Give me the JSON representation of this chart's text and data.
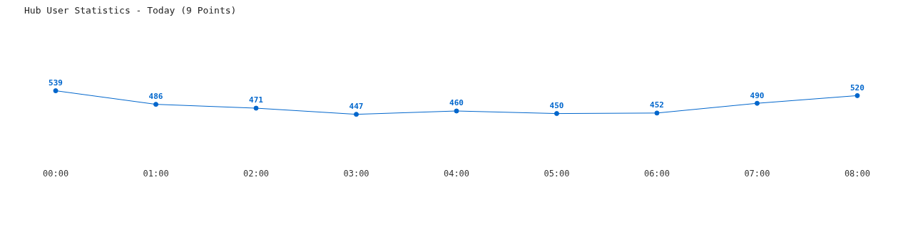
{
  "chart_data": {
    "type": "line",
    "title": "Hub User Statistics - Today (9 Points)",
    "categories": [
      "00:00",
      "01:00",
      "02:00",
      "03:00",
      "04:00",
      "05:00",
      "06:00",
      "07:00",
      "08:00"
    ],
    "values": [
      539,
      486,
      471,
      447,
      460,
      450,
      452,
      490,
      520
    ],
    "color": "#0066cc",
    "marker": "circle",
    "data_labels": true
  }
}
